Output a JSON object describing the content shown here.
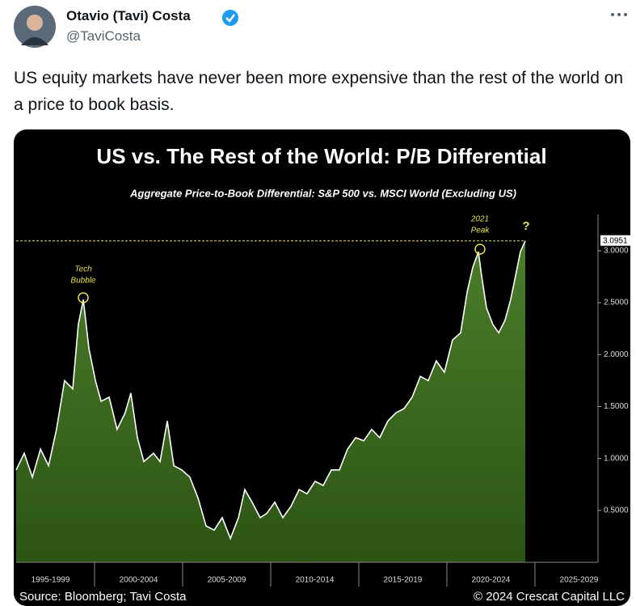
{
  "tweet": {
    "author": {
      "name": "Otavio (Tavi) Costa",
      "handle": "@TaviCosta"
    },
    "text": "US equity markets have never been more expensive than the rest of the world on a price to book basis."
  },
  "chart_data": {
    "type": "area",
    "title": "US vs. The Rest of the World: P/B Differential",
    "subtitle": "Aggregate Price-to-Book Differential: S&P 500 vs. MSCI World (Excluding US)",
    "x": [
      1995.55,
      1996.01,
      1996.47,
      1996.93,
      1997.39,
      1997.84,
      1998.3,
      1998.76,
      1999.08,
      1999.36,
      1999.68,
      2000.05,
      2000.37,
      2000.83,
      2001.28,
      2001.74,
      2002.06,
      2002.43,
      2002.8,
      2003.35,
      2003.72,
      2004.13,
      2004.5,
      2004.95,
      2005.41,
      2005.87,
      2006.33,
      2006.79,
      2007.25,
      2007.71,
      2008.17,
      2008.53,
      2008.94,
      2009.4,
      2009.77,
      2010.23,
      2010.69,
      2011.15,
      2011.61,
      2012.06,
      2012.52,
      2012.98,
      2013.44,
      2013.9,
      2014.36,
      2014.82,
      2015.28,
      2015.73,
      2016.19,
      2016.65,
      2017.11,
      2017.57,
      2018.03,
      2018.49,
      2018.94,
      2019.4,
      2019.86,
      2020.32,
      2020.78,
      2021.15,
      2021.47,
      2021.79,
      2021.97,
      2022.25,
      2022.61,
      2022.94,
      2023.3,
      2023.62,
      2023.9,
      2024.17,
      2024.45
    ],
    "values": [
      0.89,
      1.05,
      0.82,
      1.09,
      0.93,
      1.28,
      1.75,
      1.67,
      2.29,
      2.53,
      2.06,
      1.75,
      1.55,
      1.59,
      1.28,
      1.44,
      1.63,
      1.2,
      0.97,
      1.05,
      0.97,
      1.36,
      0.93,
      0.89,
      0.82,
      0.62,
      0.35,
      0.31,
      0.43,
      0.23,
      0.43,
      0.7,
      0.58,
      0.43,
      0.47,
      0.58,
      0.43,
      0.54,
      0.7,
      0.66,
      0.78,
      0.74,
      0.89,
      0.89,
      1.09,
      1.2,
      1.17,
      1.28,
      1.2,
      1.36,
      1.44,
      1.48,
      1.59,
      1.79,
      1.75,
      1.94,
      1.83,
      2.14,
      2.21,
      2.6,
      2.84,
      2.99,
      2.76,
      2.45,
      2.29,
      2.21,
      2.33,
      2.53,
      2.76,
      2.99,
      3.0951
    ],
    "color": "#4b7d2a",
    "line_color": "#ffffff",
    "xlim": [
      1995.55,
      2028.58
    ],
    "ylim": [
      0,
      3.35
    ],
    "xticks": [
      {
        "value": 1997.5,
        "label": "1995-1999"
      },
      {
        "value": 2002.5,
        "label": "2000-2004"
      },
      {
        "value": 2007.5,
        "label": "2005-2009"
      },
      {
        "value": 2012.5,
        "label": "2010-2014"
      },
      {
        "value": 2017.5,
        "label": "2015-2019"
      },
      {
        "value": 2022.5,
        "label": "2020-2024"
      },
      {
        "value": 2027.5,
        "label": "2025-2029"
      }
    ],
    "yticks": [
      {
        "value": 0.5,
        "label": "0.5000"
      },
      {
        "value": 1,
        "label": "1.0000"
      },
      {
        "value": 1.5,
        "label": "1.5000"
      },
      {
        "value": 2,
        "label": "2.0000"
      },
      {
        "value": 2.5,
        "label": "2.5000"
      },
      {
        "value": 3,
        "label": "3.0000"
      }
    ],
    "last_value": 3.0951,
    "annotations": [
      {
        "lines": [
          "Tech",
          "Bubble"
        ]
      },
      {
        "lines": [
          "2021",
          "Peak"
        ]
      },
      {
        "lines": [
          "?"
        ]
      }
    ],
    "source": "Source: Bloomberg; Tavi Costa",
    "copyright": "© 2024 Crescat Capital LLC"
  }
}
